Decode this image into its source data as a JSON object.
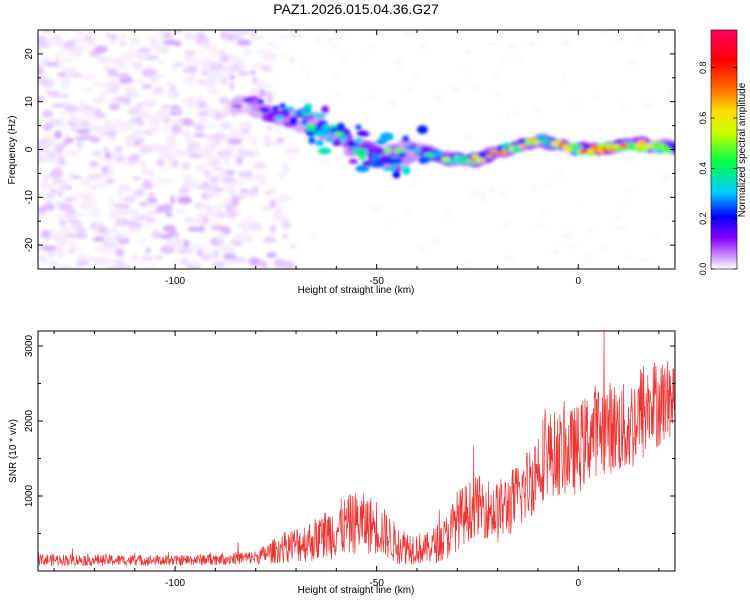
{
  "title": "PAZ1.2026.015.04.36.G27",
  "chart_data": [
    {
      "type": "heatmap",
      "name": "spectrogram",
      "xlabel": "Height of straight line (km)",
      "ylabel": "Frequency (Hz)",
      "xlim": [
        -134,
        24
      ],
      "ylim": [
        -25,
        25
      ],
      "xticks": [
        -100,
        -50,
        0
      ],
      "xtick_labels": [
        "-100",
        "-50",
        "0"
      ],
      "yticks": [
        -20,
        -10,
        0,
        10,
        20
      ],
      "ytick_labels": [
        "-20",
        "-10",
        "0",
        "10",
        "20"
      ],
      "colorbar": {
        "label": "Normalized spectral amplitude",
        "range": [
          0,
          0.95
        ],
        "ticks": [
          0,
          0.2,
          0.4,
          0.6,
          0.8
        ],
        "tick_labels": [
          "0.0",
          "0.2",
          "0.4",
          "0.6",
          "0.8"
        ],
        "colormap": [
          "#ffffff",
          "#cc99ff",
          "#8800ff",
          "#0000ff",
          "#00ccff",
          "#00ff44",
          "#ccff00",
          "#ffdd00",
          "#ff6600",
          "#ff0000",
          "#ff0066"
        ]
      },
      "ridge": {
        "description_points_x": [
          -85,
          -75,
          -65,
          -58,
          -50,
          -40,
          -32,
          -25,
          -18,
          -10,
          -5,
          0,
          5,
          10,
          15,
          20,
          24
        ],
        "frequency": [
          10,
          8,
          5,
          2,
          -2,
          0,
          -2,
          -2,
          0,
          2,
          1,
          0,
          0,
          0.5,
          1,
          0.5,
          0
        ],
        "amplitude": [
          0.2,
          0.35,
          0.45,
          0.5,
          0.55,
          0.45,
          0.55,
          0.7,
          0.75,
          0.65,
          0.7,
          0.9,
          0.8,
          0.75,
          0.8,
          0.7,
          0.6
        ]
      },
      "noise_region_x": [
        -134,
        -76
      ],
      "noise_amplitude": 0.05
    },
    {
      "type": "line",
      "name": "snr",
      "xlabel": "Height of straight line (km)",
      "ylabel": "SNR (10 * v/v)",
      "xlim": [
        -134,
        24
      ],
      "ylim": [
        0,
        3200
      ],
      "xticks": [
        -100,
        -50,
        0
      ],
      "xtick_labels": [
        "-100",
        "-50",
        "0"
      ],
      "yticks": [
        1000,
        2000,
        3000
      ],
      "ytick_labels": [
        "1000",
        "2000",
        "3000"
      ],
      "color": "#ee3333",
      "envelope": {
        "x": [
          -134,
          -100,
          -80,
          -72,
          -65,
          -60,
          -55,
          -50,
          -45,
          -38,
          -33,
          -30,
          -25,
          -20,
          -15,
          -12,
          -8,
          -4,
          0,
          4,
          8,
          12,
          16,
          20,
          24
        ],
        "y_mean": [
          150,
          140,
          180,
          330,
          420,
          550,
          650,
          600,
          350,
          290,
          420,
          680,
          880,
          780,
          980,
          1200,
          1580,
          1560,
          1620,
          1880,
          1920,
          1880,
          2120,
          2250,
          2320
        ],
        "y_amplitude": [
          80,
          70,
          90,
          220,
          300,
          380,
          420,
          380,
          260,
          200,
          300,
          400,
          400,
          420,
          460,
          520,
          580,
          560,
          600,
          620,
          620,
          620,
          700,
          600,
          500
        ]
      }
    }
  ]
}
